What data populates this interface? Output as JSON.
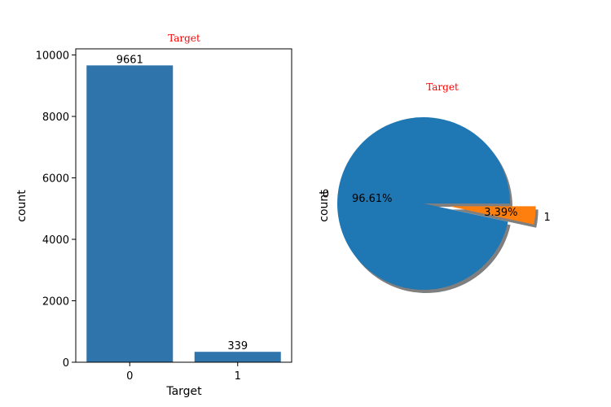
{
  "chart_data": [
    {
      "type": "bar",
      "title": "Target",
      "title_color": "#ff0000",
      "xlabel": "Target",
      "ylabel": "count",
      "categories": [
        "0",
        "1"
      ],
      "values": [
        9661,
        339
      ],
      "data_labels": [
        "9661",
        "339"
      ],
      "ylim": [
        0,
        10200
      ],
      "yticks": [
        0,
        2000,
        4000,
        6000,
        8000,
        10000
      ],
      "bar_color": "#2f75ab",
      "grid": false
    },
    {
      "type": "pie",
      "title": "Target",
      "title_color": "#ff0000",
      "ylabel": "count",
      "labels": [
        "0",
        "1"
      ],
      "values": [
        96.61,
        3.39
      ],
      "autopct_labels": [
        "96.61%",
        "3.39%"
      ],
      "explode": [
        0,
        0.3
      ],
      "shadow": true,
      "colors": [
        "#1f77b4",
        "#ff7f0e"
      ]
    }
  ]
}
